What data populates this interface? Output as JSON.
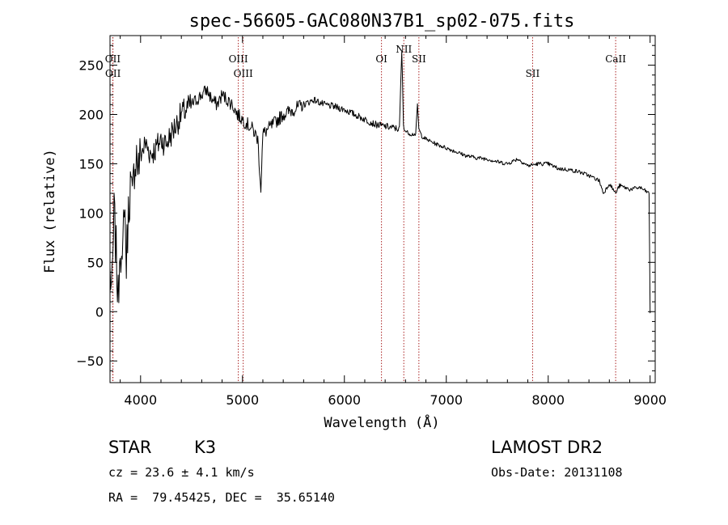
{
  "chart_data": {
    "type": "line",
    "title": "spec-56605-GAC080N37B1_sp02-075.fits",
    "xlabel": "Wavelength (Å)",
    "ylabel": "Flux (relative)",
    "xlim": [
      3700,
      9050
    ],
    "ylim": [
      -72,
      280
    ],
    "x_ticks": [
      4000,
      5000,
      6000,
      7000,
      8000,
      9000
    ],
    "x_tick_labels": [
      "4000",
      "5000",
      "6000",
      "7000",
      "8000",
      "9000"
    ],
    "y_ticks": [
      -50,
      0,
      50,
      100,
      150,
      200,
      250
    ],
    "y_tick_labels": [
      "−50",
      "0",
      "50",
      "100",
      "150",
      "200",
      "250"
    ],
    "grid": false,
    "series": [
      {
        "color": "#000000",
        "x": [
          3700,
          3720,
          3740,
          3760,
          3780,
          3800,
          3820,
          3840,
          3860,
          3880,
          3900,
          3920,
          3940,
          3960,
          3980,
          4000,
          4050,
          4100,
          4150,
          4200,
          4250,
          4300,
          4350,
          4400,
          4450,
          4500,
          4550,
          4600,
          4650,
          4700,
          4750,
          4800,
          4850,
          4900,
          4950,
          5000,
          5050,
          5100,
          5150,
          5180,
          5200,
          5250,
          5300,
          5400,
          5500,
          5600,
          5700,
          5800,
          5900,
          6000,
          6100,
          6200,
          6300,
          6400,
          6500,
          6540,
          6563,
          6580,
          6600,
          6650,
          6700,
          6717,
          6731,
          6760,
          6800,
          6900,
          7000,
          7100,
          7200,
          7300,
          7400,
          7500,
          7600,
          7700,
          7800,
          7900,
          8000,
          8100,
          8200,
          8300,
          8400,
          8500,
          8542,
          8600,
          8662,
          8700,
          8800,
          8900,
          8990,
          9000,
          9003
        ],
        "y": [
          40,
          20,
          100,
          60,
          10,
          80,
          30,
          120,
          50,
          100,
          130,
          110,
          150,
          160,
          145,
          160,
          170,
          160,
          165,
          175,
          170,
          180,
          190,
          200,
          205,
          210,
          215,
          220,
          225,
          215,
          210,
          220,
          215,
          210,
          200,
          195,
          190,
          185,
          175,
          125,
          180,
          185,
          190,
          200,
          205,
          210,
          215,
          210,
          208,
          205,
          200,
          195,
          190,
          188,
          186,
          185,
          265,
          190,
          183,
          180,
          180,
          210,
          185,
          178,
          175,
          170,
          166,
          162,
          158,
          156,
          155,
          152,
          150,
          155,
          148,
          150,
          150,
          145,
          144,
          142,
          138,
          133,
          120,
          130,
          120,
          128,
          124,
          126,
          120,
          0,
          0
        ]
      }
    ],
    "line_markers": [
      {
        "label": "OII",
        "x": 3727
      },
      {
        "label": "OII",
        "x": 3729
      },
      {
        "label": "OIII",
        "x": 4959
      },
      {
        "label": "OIII",
        "x": 5007
      },
      {
        "label": "OI",
        "x": 6364
      },
      {
        "label": "NII",
        "x": 6583
      },
      {
        "label": "SII",
        "x": 6731
      },
      {
        "label": "SII",
        "x": 7847
      },
      {
        "label": "CaII",
        "x": 8662
      }
    ],
    "marker_color": "#aa2222"
  },
  "footer": {
    "object_class": "STAR",
    "subclass": "K3",
    "redshift": "cz = 23.6 ± 4.1 km/s",
    "coordinates": "RA =  79.45425, DEC =  35.65140",
    "survey": "LAMOST DR2",
    "obs_date": "Obs-Date: 20131108"
  }
}
